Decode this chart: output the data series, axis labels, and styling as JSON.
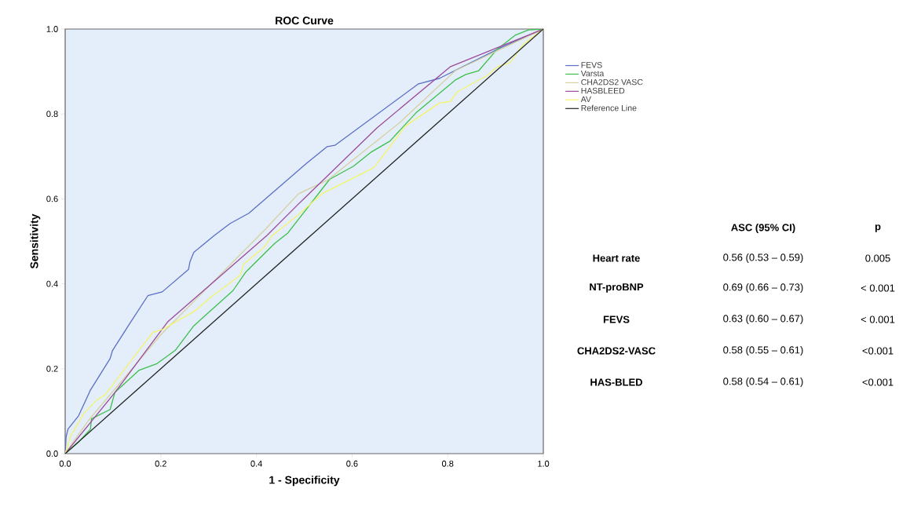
{
  "chart_data": {
    "type": "line",
    "title": "ROC Curve",
    "xlabel": "1 - Specificity",
    "ylabel": "Sensitivity",
    "xlim": [
      0,
      1
    ],
    "ylim": [
      0,
      1
    ],
    "xticks": [
      {
        "value": 0,
        "label": "0.0"
      },
      {
        "value": 0.2,
        "label": "0.2"
      },
      {
        "value": 0.4,
        "label": "0.4"
      },
      {
        "value": 0.6,
        "label": "0.6"
      },
      {
        "value": 0.8,
        "label": "0.8"
      },
      {
        "value": 1,
        "label": "1.0"
      }
    ],
    "yticks": [
      {
        "value": 0,
        "label": "0.0"
      },
      {
        "value": 0.2,
        "label": "0.2"
      },
      {
        "value": 0.4,
        "label": "0.4"
      },
      {
        "value": 0.6,
        "label": "0.6"
      },
      {
        "value": 0.8,
        "label": "0.8"
      },
      {
        "value": 1,
        "label": "1.0"
      }
    ],
    "legend": "right",
    "series": [
      {
        "name": "FEVS",
        "color": "#5b6fc5",
        "x": [
          0,
          0.002,
          0.006,
          0.028,
          0.053,
          0.094,
          0.099,
          0.137,
          0.173,
          0.203,
          0.258,
          0.261,
          0.269,
          0.312,
          0.345,
          0.384,
          0.504,
          0.548,
          0.564,
          0.739,
          0.783,
          0.909,
          1
        ],
        "values": [
          0,
          0.04,
          0.058,
          0.089,
          0.15,
          0.224,
          0.243,
          0.31,
          0.372,
          0.381,
          0.434,
          0.452,
          0.474,
          0.514,
          0.542,
          0.566,
          0.683,
          0.723,
          0.726,
          0.871,
          0.884,
          0.955,
          1
        ]
      },
      {
        "name": "Varsta",
        "color": "#3cbf4a",
        "x": [
          0,
          0.028,
          0.053,
          0.055,
          0.094,
          0.104,
          0.154,
          0.192,
          0.23,
          0.269,
          0.351,
          0.378,
          0.438,
          0.466,
          0.553,
          0.603,
          0.641,
          0.679,
          0.734,
          0.816,
          0.838,
          0.865,
          0.904,
          0.942,
          0.969,
          1
        ],
        "values": [
          0,
          0.027,
          0.058,
          0.082,
          0.104,
          0.144,
          0.196,
          0.212,
          0.243,
          0.301,
          0.384,
          0.428,
          0.495,
          0.52,
          0.646,
          0.677,
          0.711,
          0.736,
          0.803,
          0.88,
          0.893,
          0.902,
          0.953,
          0.986,
          0.998,
          1
        ]
      },
      {
        "name": "CHA2DS2 VASC",
        "color": "#d6d0a0",
        "x": [
          0,
          0.05,
          0.2,
          0.42,
          0.488,
          0.55,
          0.7,
          0.816,
          1
        ],
        "values": [
          0,
          0.08,
          0.28,
          0.53,
          0.612,
          0.645,
          0.78,
          0.902,
          1
        ]
      },
      {
        "name": "HASBLEED",
        "color": "#9b4a9b",
        "x": [
          0,
          0.104,
          0.214,
          0.422,
          0.488,
          0.652,
          0.805,
          1
        ],
        "values": [
          0,
          0.144,
          0.31,
          0.514,
          0.588,
          0.767,
          0.911,
          1
        ]
      },
      {
        "name": "AV",
        "color": "#f4f46a",
        "x": [
          0,
          0.011,
          0.039,
          0.066,
          0.083,
          0.137,
          0.154,
          0.184,
          0.203,
          0.274,
          0.302,
          0.367,
          0.373,
          0.416,
          0.433,
          0.488,
          0.537,
          0.646,
          0.712,
          0.783,
          0.805,
          0.821,
          0.882,
          0.904,
          0.931,
          0.958,
          1
        ],
        "values": [
          0,
          0.04,
          0.095,
          0.126,
          0.138,
          0.218,
          0.243,
          0.286,
          0.292,
          0.338,
          0.366,
          0.421,
          0.446,
          0.486,
          0.514,
          0.563,
          0.612,
          0.674,
          0.772,
          0.826,
          0.829,
          0.853,
          0.89,
          0.911,
          0.921,
          0.964,
          1
        ]
      },
      {
        "name": "Reference Line",
        "color": "#222222",
        "x": [
          0,
          1
        ],
        "values": [
          0,
          1
        ]
      }
    ],
    "annotations": [
      "ASC (95% CI)",
      "p",
      "Heart rate",
      "0.56 (0.53 – 0.59)",
      "0.005",
      "NT-proBNP",
      "0.69 (0.66 – 0.73)",
      "< 0.001",
      "FEVS",
      "0.63 (0.60 – 0.67)",
      "< 0.001",
      "CHA2DS2-VASC",
      "0.58 (0.55 – 0.61)",
      "<0.001",
      "HAS-BLED",
      "0.58 (0.54 – 0.61)",
      "<0.001"
    ]
  }
}
